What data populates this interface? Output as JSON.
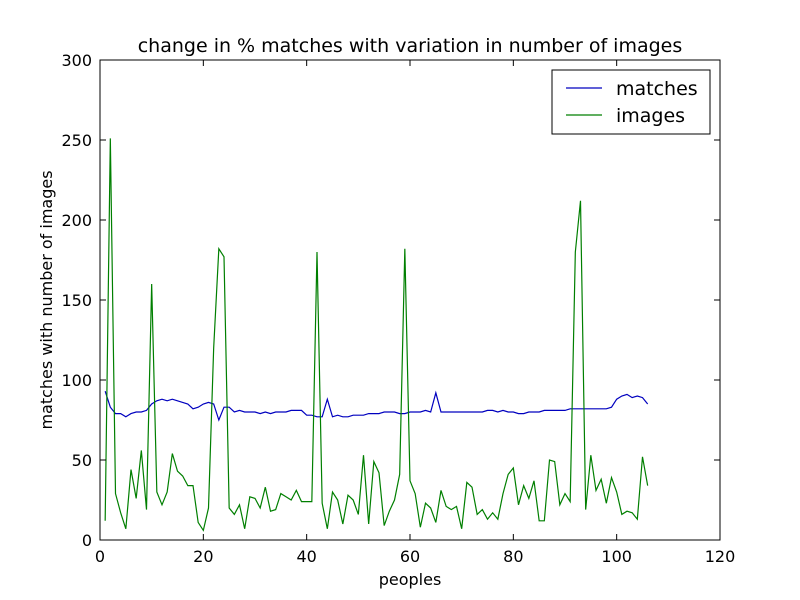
{
  "chart_data": {
    "type": "line",
    "title": "change in % matches with variation in number of images",
    "xlabel": "peoples",
    "ylabel": "matches with number of images",
    "xlim": [
      0,
      120
    ],
    "ylim": [
      0,
      300
    ],
    "xticks": [
      0,
      20,
      40,
      60,
      80,
      100,
      120
    ],
    "yticks": [
      0,
      50,
      100,
      150,
      200,
      250,
      300
    ],
    "grid": false,
    "legend_position": "top-right",
    "series": [
      {
        "name": "matches",
        "color": "#0000bf",
        "x": [
          1,
          2,
          3,
          4,
          5,
          6,
          7,
          8,
          9,
          10,
          11,
          12,
          13,
          14,
          15,
          16,
          17,
          18,
          19,
          20,
          21,
          22,
          23,
          24,
          25,
          26,
          27,
          28,
          29,
          30,
          31,
          32,
          33,
          34,
          35,
          36,
          37,
          38,
          39,
          40,
          41,
          42,
          43,
          44,
          45,
          46,
          47,
          48,
          49,
          50,
          51,
          52,
          53,
          54,
          55,
          56,
          57,
          58,
          59,
          60,
          61,
          62,
          63,
          64,
          65,
          66,
          67,
          68,
          69,
          70,
          71,
          72,
          73,
          74,
          75,
          76,
          77,
          78,
          79,
          80,
          81,
          82,
          83,
          84,
          85,
          86,
          87,
          88,
          89,
          90,
          91,
          92,
          93,
          94,
          95,
          96,
          97,
          98,
          99,
          100,
          101,
          102,
          103,
          104,
          105,
          106
        ],
        "y": [
          93,
          83,
          79,
          79,
          77,
          79,
          80,
          80,
          81,
          85,
          87,
          88,
          87,
          88,
          87,
          86,
          85,
          82,
          83,
          85,
          86,
          85,
          75,
          83,
          83,
          80,
          81,
          80,
          80,
          80,
          79,
          80,
          79,
          80,
          80,
          80,
          81,
          81,
          81,
          78,
          78,
          77,
          77,
          88,
          77,
          78,
          77,
          77,
          78,
          78,
          78,
          79,
          79,
          79,
          80,
          80,
          80,
          79,
          79,
          80,
          80,
          80,
          81,
          80,
          92,
          80,
          80,
          80,
          80,
          80,
          80,
          80,
          80,
          80,
          81,
          81,
          80,
          81,
          80,
          80,
          79,
          79,
          80,
          80,
          80,
          81,
          81,
          81,
          81,
          81,
          82,
          82,
          82,
          82,
          82,
          82,
          82,
          82,
          83,
          88,
          90,
          91,
          89,
          90,
          89,
          85
        ]
      },
      {
        "name": "images",
        "color": "#007f00",
        "x": [
          1,
          2,
          3,
          4,
          5,
          6,
          7,
          8,
          9,
          10,
          11,
          12,
          13,
          14,
          15,
          16,
          17,
          18,
          19,
          20,
          21,
          22,
          23,
          24,
          25,
          26,
          27,
          28,
          29,
          30,
          31,
          32,
          33,
          34,
          35,
          36,
          37,
          38,
          39,
          40,
          41,
          42,
          43,
          44,
          45,
          46,
          47,
          48,
          49,
          50,
          51,
          52,
          53,
          54,
          55,
          56,
          57,
          58,
          59,
          60,
          61,
          62,
          63,
          64,
          65,
          66,
          67,
          68,
          69,
          70,
          71,
          72,
          73,
          74,
          75,
          76,
          77,
          78,
          79,
          80,
          81,
          82,
          83,
          84,
          85,
          86,
          87,
          88,
          89,
          90,
          91,
          92,
          93,
          94,
          95,
          96,
          97,
          98,
          99,
          100,
          101,
          102,
          103,
          104,
          105,
          106
        ],
        "y": [
          12,
          251,
          29,
          17,
          7,
          44,
          26,
          56,
          19,
          160,
          30,
          22,
          30,
          54,
          43,
          40,
          34,
          34,
          11,
          6,
          20,
          120,
          182,
          177,
          20,
          16,
          22,
          7,
          27,
          26,
          20,
          33,
          18,
          19,
          29,
          27,
          25,
          31,
          24,
          24,
          24,
          180,
          23,
          7,
          30,
          25,
          10,
          28,
          25,
          16,
          53,
          10,
          49,
          42,
          9,
          18,
          25,
          41,
          182,
          37,
          29,
          8,
          23,
          20,
          11,
          31,
          21,
          19,
          21,
          7,
          36,
          33,
          16,
          19,
          13,
          17,
          13,
          29,
          41,
          45,
          22,
          34,
          26,
          37,
          12,
          12,
          50,
          49,
          22,
          29,
          24,
          180,
          212,
          19,
          53,
          31,
          38,
          23,
          39,
          30,
          16,
          18,
          17,
          13,
          52,
          34
        ]
      }
    ]
  }
}
